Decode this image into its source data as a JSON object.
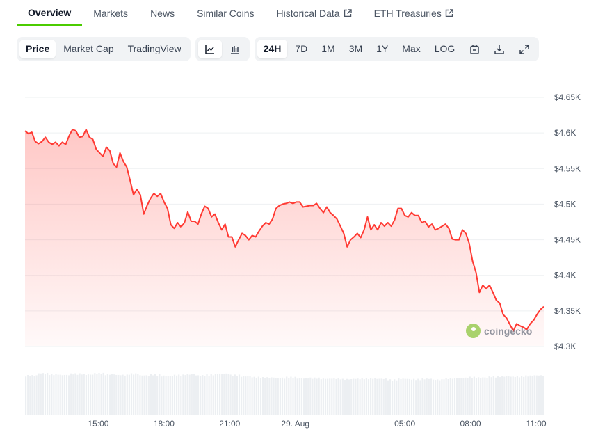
{
  "tabs": [
    {
      "label": "Overview",
      "active": true
    },
    {
      "label": "Markets"
    },
    {
      "label": "News"
    },
    {
      "label": "Similar Coins"
    },
    {
      "label": "Historical Data",
      "external": true
    },
    {
      "label": "ETH Treasuries",
      "external": true
    }
  ],
  "toolbar": {
    "views": [
      "Price",
      "Market Cap",
      "TradingView"
    ],
    "ranges": [
      "24H",
      "7D",
      "1M",
      "3M",
      "1Y",
      "Max",
      "LOG"
    ]
  },
  "watermark": "coingecko",
  "colors": {
    "line": "#ff3a33",
    "accent": "#4bcc00",
    "grid": "#eef0f2",
    "volume": "#eceff2"
  },
  "chart_data": {
    "type": "line",
    "title": "",
    "y_ticks": [
      {
        "v": 4300,
        "label": "$4.3K"
      },
      {
        "v": 4350,
        "label": "$4.35K"
      },
      {
        "v": 4400,
        "label": "$4.4K"
      },
      {
        "v": 4450,
        "label": "$4.45K"
      },
      {
        "v": 4500,
        "label": "$4.5K"
      },
      {
        "v": 4550,
        "label": "$4.55K"
      },
      {
        "v": 4600,
        "label": "$4.6K"
      },
      {
        "v": 4650,
        "label": "$4.65K"
      }
    ],
    "ylim": [
      4300,
      4650
    ],
    "x_range_hours": [
      11.65,
      35.35
    ],
    "x_ticks": [
      {
        "h": 15,
        "label": "15:00"
      },
      {
        "h": 18,
        "label": "18:00"
      },
      {
        "h": 21,
        "label": "21:00"
      },
      {
        "h": 24,
        "label": "29. Aug"
      },
      {
        "h": 29,
        "label": "05:00"
      },
      {
        "h": 32,
        "label": "08:00"
      },
      {
        "h": 35,
        "label": "11:00"
      }
    ],
    "values": [
      4603,
      4599,
      4601,
      4588,
      4585,
      4588,
      4594,
      4587,
      4584,
      4587,
      4582,
      4587,
      4584,
      4596,
      4605,
      4603,
      4594,
      4595,
      4605,
      4594,
      4591,
      4577,
      4572,
      4567,
      4580,
      4575,
      4557,
      4552,
      4572,
      4560,
      4552,
      4533,
      4513,
      4521,
      4513,
      4486,
      4498,
      4508,
      4515,
      4511,
      4515,
      4503,
      4494,
      4471,
      4466,
      4474,
      4468,
      4474,
      4489,
      4476,
      4476,
      4472,
      4486,
      4497,
      4494,
      4482,
      4486,
      4474,
      4464,
      4472,
      4454,
      4454,
      4440,
      4450,
      4459,
      4456,
      4450,
      4456,
      4454,
      4462,
      4469,
      4474,
      4472,
      4479,
      4494,
      4498,
      4500,
      4501,
      4503,
      4501,
      4503,
      4503,
      4496,
      4497,
      4498,
      4498,
      4501,
      4494,
      4488,
      4496,
      4488,
      4484,
      4479,
      4469,
      4459,
      4440,
      4450,
      4454,
      4459,
      4453,
      4464,
      4482,
      4464,
      4471,
      4464,
      4474,
      4469,
      4474,
      4469,
      4478,
      4494,
      4494,
      4484,
      4482,
      4488,
      4484,
      4484,
      4474,
      4476,
      4468,
      4472,
      4464,
      4466,
      4469,
      4472,
      4466,
      4451,
      4450,
      4450,
      4464,
      4459,
      4445,
      4420,
      4404,
      4376,
      4386,
      4381,
      4386,
      4376,
      4365,
      4361,
      4345,
      4340,
      4331,
      4322,
      4332,
      4329,
      4327,
      4324,
      4332,
      4337,
      4345,
      4352,
      4356
    ],
    "volume_relative": [
      0.92,
      0.97,
      0.95,
      0.93,
      0.96,
      0.94,
      0.97,
      0.95,
      0.93,
      0.96,
      0.92,
      0.94,
      0.91,
      0.93,
      0.95,
      0.92,
      0.94,
      0.96,
      0.93,
      0.9,
      0.88,
      0.87,
      0.86,
      0.88,
      0.85,
      0.86,
      0.84,
      0.85,
      0.83,
      0.84,
      0.85,
      0.84,
      0.82,
      0.84,
      0.83,
      0.84,
      0.82,
      0.85,
      0.86,
      0.88,
      0.87,
      0.89,
      0.9,
      0.89,
      0.91,
      0.92
    ]
  }
}
